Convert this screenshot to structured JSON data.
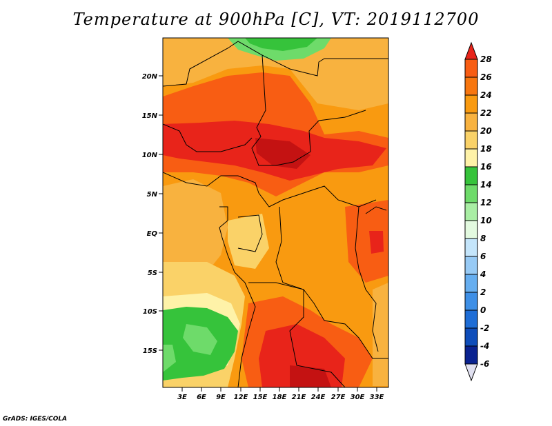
{
  "title": "Temperature at 900hPa [C], VT: 2019112700",
  "credit": "GrADS: IGES/COLA",
  "map": {
    "lat_labels": [
      "20N",
      "15N",
      "10N",
      "5N",
      "EQ",
      "5S",
      "10S",
      "15S"
    ],
    "lon_labels": [
      "3E",
      "6E",
      "9E",
      "12E",
      "15E",
      "18E",
      "21E",
      "24E",
      "27E",
      "30E",
      "33E"
    ]
  },
  "colorbar": {
    "labels": [
      "28",
      "26",
      "24",
      "22",
      "20",
      "18",
      "16",
      "14",
      "12",
      "10",
      "8",
      "6",
      "4",
      "2",
      "0",
      "-2",
      "-4",
      "-6"
    ],
    "colors": [
      "#e8241a",
      "#f85d13",
      "#f7760f",
      "#f99a10",
      "#f8b23f",
      "#fad268",
      "#fef2a8",
      "#36c33b",
      "#6edb6a",
      "#a9eea4",
      "#e3fae0",
      "#c4e5fb",
      "#97caf5",
      "#66aef0",
      "#3e8fe6",
      "#1e6dd6",
      "#0e4dba",
      "#0a2290",
      "#0a117a"
    ]
  }
}
